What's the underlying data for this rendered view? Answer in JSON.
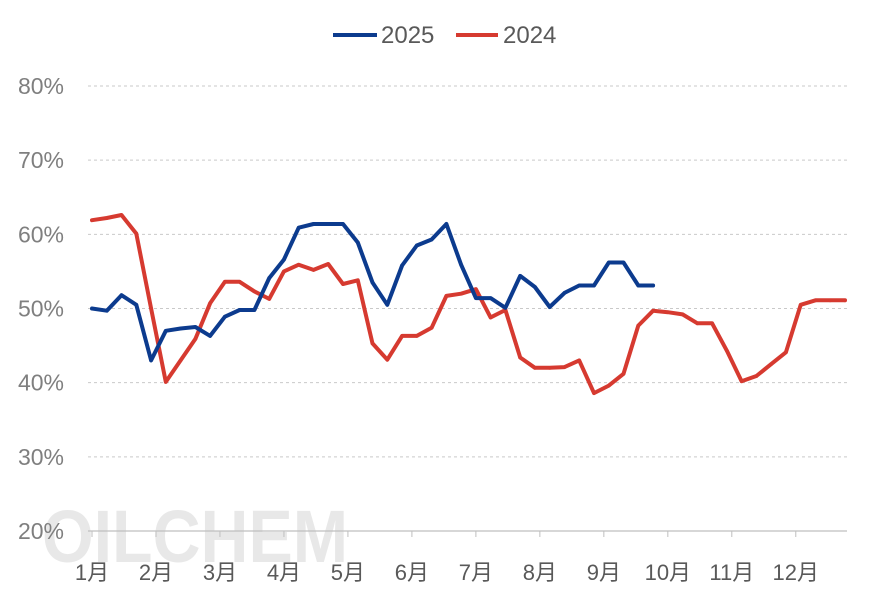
{
  "chart_data": {
    "type": "line",
    "ylim": [
      20,
      80
    ],
    "yticks": [
      20,
      30,
      40,
      50,
      60,
      70,
      80
    ],
    "yticklabels": [
      "20%",
      "30%",
      "40%",
      "50%",
      "60%",
      "70%",
      "80%"
    ],
    "xticklabels": [
      "1月",
      "2月",
      "3月",
      "4月",
      "5月",
      "6月",
      "7月",
      "8月",
      "9月",
      "10月",
      "11月",
      "12月"
    ],
    "grid": true,
    "legend_position": "top-center",
    "series": [
      {
        "name": "2025",
        "color": "#0C3B8E",
        "values": [
          50.0,
          49.7,
          51.8,
          50.5,
          43.0,
          47.0,
          47.3,
          47.5,
          46.3,
          48.9,
          49.8,
          49.8,
          54.1,
          56.6,
          60.9,
          61.4,
          61.4,
          61.4,
          58.9,
          53.5,
          50.5,
          55.8,
          58.5,
          59.3,
          61.4,
          55.9,
          51.4,
          51.4,
          50.1,
          54.4,
          52.9,
          50.2,
          52.1,
          53.1,
          53.1,
          56.2,
          56.2,
          53.1,
          53.1
        ]
      },
      {
        "name": "2024",
        "color": "#D63A30",
        "values": [
          61.9,
          62.2,
          62.6,
          60.1,
          50.0,
          40.1,
          43.0,
          45.9,
          50.7,
          53.6,
          53.6,
          52.3,
          51.3,
          55.0,
          55.9,
          55.2,
          56.0,
          53.3,
          53.8,
          45.3,
          43.1,
          46.3,
          46.3,
          47.4,
          51.7,
          52.0,
          52.6,
          48.8,
          49.8,
          43.4,
          42.0,
          42.0,
          42.1,
          43.0,
          38.6,
          39.6,
          41.2,
          47.7,
          49.7,
          49.5,
          49.2,
          48.0,
          48.0,
          44.3,
          40.2,
          40.9,
          42.5,
          44.1,
          50.5,
          51.1,
          51.1,
          51.1
        ]
      }
    ]
  },
  "watermark": "OILCHEM"
}
